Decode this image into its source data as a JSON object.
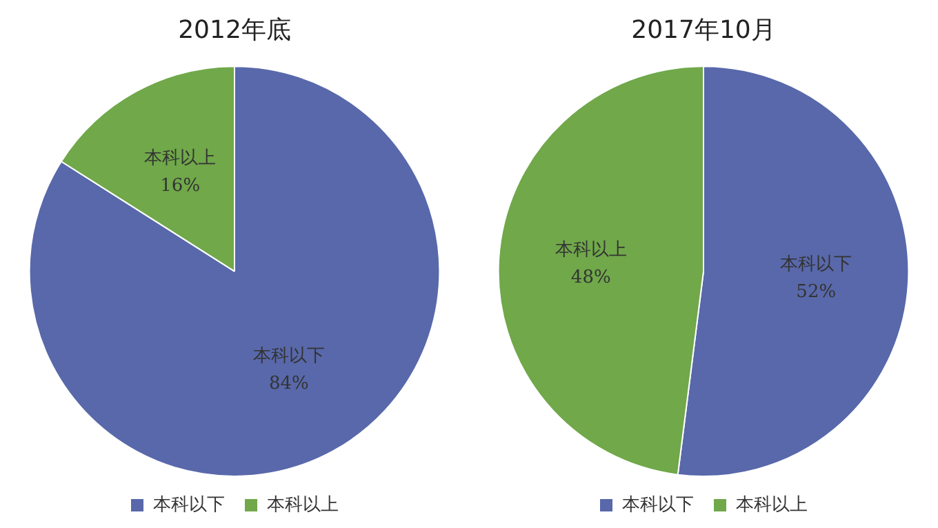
{
  "chart_data": [
    {
      "type": "pie",
      "title": "2012年底",
      "categories": [
        "本科以下",
        "本科以上"
      ],
      "values": [
        84,
        16
      ],
      "colors": [
        "#5868aa",
        "#70a84a"
      ],
      "value_labels": [
        "84%",
        "16%"
      ],
      "legend": "bottom"
    },
    {
      "type": "pie",
      "title": "2017年10月",
      "categories": [
        "本科以下",
        "本科以上"
      ],
      "values": [
        52,
        48
      ],
      "colors": [
        "#5868aa",
        "#70a84a"
      ],
      "value_labels": [
        "52%",
        "48%"
      ],
      "legend": "bottom"
    }
  ]
}
